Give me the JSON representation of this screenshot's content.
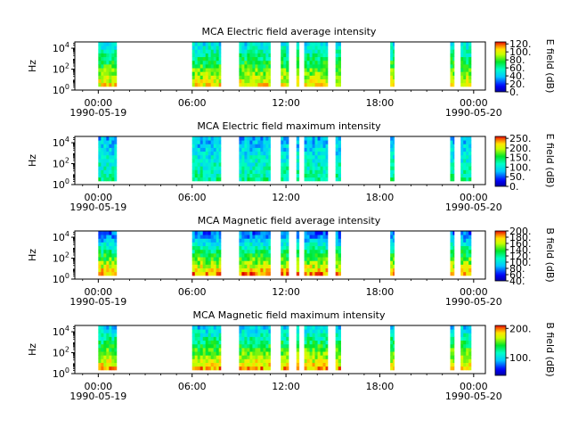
{
  "chart_data": [
    {
      "type": "heatmap",
      "title": "MCA  Electric field average intensity",
      "ylabel": "Hz",
      "yscale": "log",
      "ylim": [
        1,
        40000
      ],
      "y_ticks": [
        "10^0",
        "10^2",
        "10^4"
      ],
      "x_ticks": [
        "00:00",
        "06:00",
        "12:00",
        "18:00",
        "00:00"
      ],
      "x_date_labels": [
        "1990-05-19",
        "",
        "",
        "",
        "1990-05-20"
      ],
      "xlim": [
        "1990-05-18T22:30",
        "1990-05-20T00:45"
      ],
      "colorbar": {
        "label": "E field (dB)",
        "range": [
          0,
          125
        ],
        "ticks": [
          "0.",
          "20.",
          "40.",
          "60.",
          "80.",
          "100.",
          "120."
        ]
      },
      "data_intervals_utc": [
        [
          "00:00",
          "01:10"
        ],
        [
          "06:00",
          "07:50"
        ],
        [
          "09:00",
          "11:00"
        ],
        [
          "11:40",
          "12:10"
        ],
        [
          "12:40",
          "12:50"
        ],
        [
          "13:10",
          "14:40"
        ],
        [
          "15:10",
          "15:30"
        ],
        [
          "18:40",
          "18:55"
        ],
        [
          "22:30",
          "22:45"
        ],
        [
          "23:10",
          "23:50"
        ]
      ],
      "colormap": "rainbow-like (blue-cyan-green-yellow-red)"
    },
    {
      "type": "heatmap",
      "title": "MCA  Electric field maximum intensity",
      "ylabel": "Hz",
      "yscale": "log",
      "ylim": [
        1,
        40000
      ],
      "y_ticks": [
        "10^0",
        "10^2",
        "10^4"
      ],
      "x_ticks": [
        "00:00",
        "06:00",
        "12:00",
        "18:00",
        "00:00"
      ],
      "x_date_labels": [
        "1990-05-19",
        "",
        "",
        "",
        "1990-05-20"
      ],
      "xlim": [
        "1990-05-18T22:30",
        "1990-05-20T00:45"
      ],
      "colorbar": {
        "label": "E field (dB)",
        "range": [
          0,
          260
        ],
        "ticks": [
          "0.",
          "50.",
          "100.",
          "150.",
          "200.",
          "250."
        ]
      },
      "data_intervals_utc": [
        [
          "00:00",
          "01:10"
        ],
        [
          "06:00",
          "07:50"
        ],
        [
          "09:00",
          "11:00"
        ],
        [
          "11:40",
          "12:10"
        ],
        [
          "12:40",
          "12:50"
        ],
        [
          "13:10",
          "14:40"
        ],
        [
          "15:10",
          "15:30"
        ],
        [
          "18:40",
          "18:55"
        ],
        [
          "22:30",
          "22:45"
        ],
        [
          "23:10",
          "23:50"
        ]
      ],
      "colormap": "rainbow-like (blue-cyan-green-yellow-red)"
    },
    {
      "type": "heatmap",
      "title": "MCA  Magnetic field average intensity",
      "ylabel": "Hz",
      "yscale": "log",
      "ylim": [
        1,
        40000
      ],
      "y_ticks": [
        "10^0",
        "10^2",
        "10^4"
      ],
      "x_ticks": [
        "00:00",
        "06:00",
        "12:00",
        "18:00",
        "00:00"
      ],
      "x_date_labels": [
        "1990-05-19",
        "",
        "",
        "",
        "1990-05-20"
      ],
      "xlim": [
        "1990-05-18T22:30",
        "1990-05-20T00:45"
      ],
      "colorbar": {
        "label": "B field (dB)",
        "range": [
          40,
          200
        ],
        "ticks": [
          "40.",
          "60.",
          "80.",
          "100.",
          "120.",
          "140.",
          "160.",
          "180.",
          "200."
        ]
      },
      "data_intervals_utc": [
        [
          "00:00",
          "01:10"
        ],
        [
          "06:00",
          "07:50"
        ],
        [
          "09:00",
          "11:00"
        ],
        [
          "11:40",
          "12:10"
        ],
        [
          "12:40",
          "12:50"
        ],
        [
          "13:10",
          "14:40"
        ],
        [
          "15:10",
          "15:30"
        ],
        [
          "18:40",
          "18:55"
        ],
        [
          "22:30",
          "22:45"
        ],
        [
          "23:10",
          "23:50"
        ]
      ],
      "colormap": "rainbow-like (blue-cyan-green-yellow-red)"
    },
    {
      "type": "heatmap",
      "title": "MCA  Magnetic field maximum intensity",
      "ylabel": "Hz",
      "yscale": "log",
      "ylim": [
        1,
        40000
      ],
      "y_ticks": [
        "10^0",
        "10^2",
        "10^4"
      ],
      "x_ticks": [
        "00:00",
        "06:00",
        "12:00",
        "18:00",
        "00:00"
      ],
      "x_date_labels": [
        "1990-05-19",
        "",
        "",
        "",
        "1990-05-20"
      ],
      "xlim": [
        "1990-05-18T22:30",
        "1990-05-20T00:45"
      ],
      "colorbar": {
        "label": "B field (dB)",
        "range": [
          40,
          210
        ],
        "ticks": [
          "100.",
          "200."
        ]
      },
      "data_intervals_utc": [
        [
          "00:00",
          "01:10"
        ],
        [
          "06:00",
          "07:50"
        ],
        [
          "09:00",
          "11:00"
        ],
        [
          "11:40",
          "12:10"
        ],
        [
          "12:40",
          "12:50"
        ],
        [
          "13:10",
          "14:40"
        ],
        [
          "15:10",
          "15:30"
        ],
        [
          "18:40",
          "18:55"
        ],
        [
          "22:30",
          "22:45"
        ],
        [
          "23:10",
          "23:50"
        ]
      ],
      "colormap": "rainbow-like (blue-cyan-green-yellow-red)"
    }
  ]
}
